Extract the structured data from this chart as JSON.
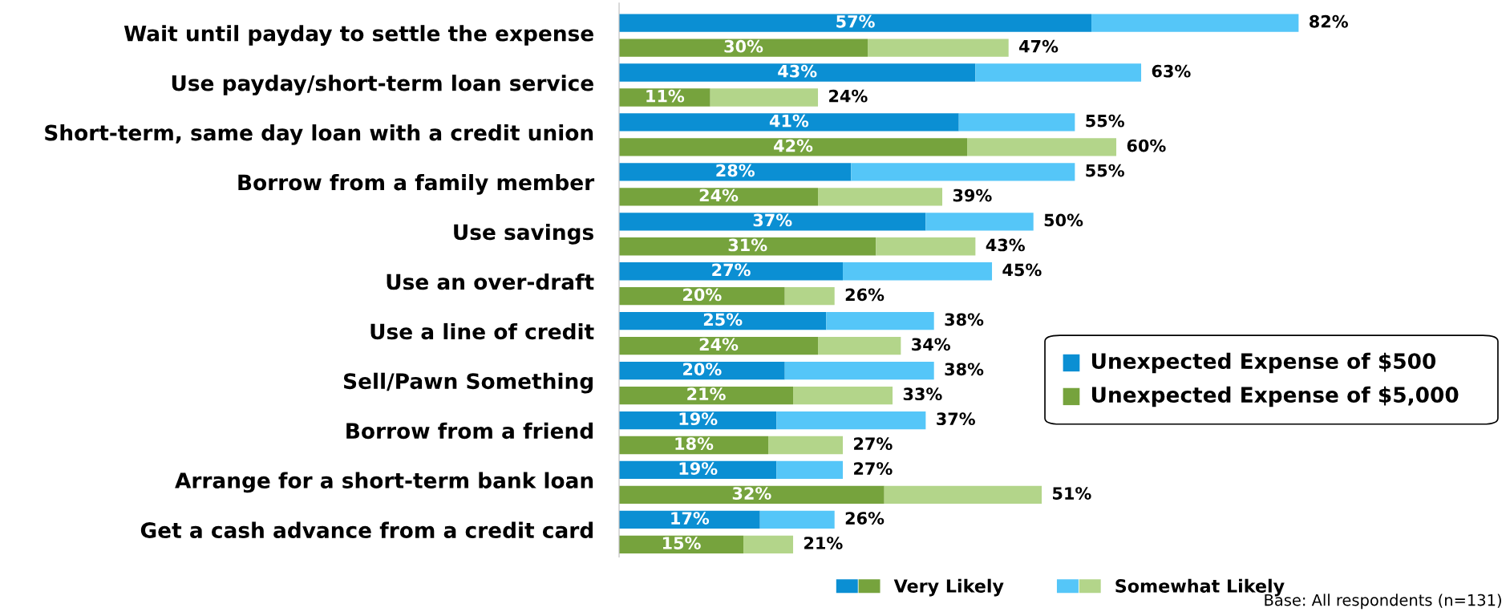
{
  "chart_data": {
    "type": "bar",
    "orientation": "horizontal",
    "stacked": true,
    "categories": [
      "Wait until payday to settle the expense",
      null,
      "Use payday/short-term loan service",
      null,
      "Short-term, same day loan with a credit union",
      null,
      "Borrow from a family member",
      null,
      "Use savings",
      null,
      "Use an over-draft",
      null,
      "Use a line of credit",
      null,
      "Sell/Pawn Something",
      null,
      "Borrow from a friend",
      null,
      "Arrange for a short-term bank loan",
      null,
      "Get a cash advance from a credit card",
      null
    ],
    "series": [
      {
        "name": "Very Likely",
        "colors": [
          "#0b8fd3",
          "#76a33d",
          "#0b8fd3",
          "#76a33d",
          "#0b8fd3",
          "#76a33d",
          "#0b8fd3",
          "#76a33d",
          "#0b8fd3",
          "#76a33d",
          "#0b8fd3",
          "#76a33d",
          "#0b8fd3",
          "#76a33d",
          "#0b8fd3",
          "#76a33d",
          "#0b8fd3",
          "#76a33d",
          "#0b8fd3",
          "#76a33d",
          "#0b8fd3",
          "#76a33d"
        ],
        "values": [
          57,
          30,
          43,
          11,
          41,
          42,
          28,
          24,
          37,
          31,
          27,
          20,
          25,
          24,
          20,
          21,
          19,
          18,
          19,
          32,
          17,
          15
        ],
        "value_labels": [
          "57%",
          "30%",
          "43%",
          "11%",
          "41%",
          "42%",
          "28%",
          "24%",
          "37%",
          "31%",
          "27%",
          "20%",
          "25%",
          "24%",
          "20%",
          "21%",
          "19%",
          "18%",
          "19%",
          "32%",
          "17%",
          "15%"
        ]
      },
      {
        "name": "Somewhat Likely",
        "colors": [
          "#55c6f8",
          "#b3d58a",
          "#55c6f8",
          "#b3d58a",
          "#55c6f8",
          "#b3d58a",
          "#55c6f8",
          "#b3d58a",
          "#55c6f8",
          "#b3d58a",
          "#55c6f8",
          "#b3d58a",
          "#55c6f8",
          "#b3d58a",
          "#55c6f8",
          "#b3d58a",
          "#55c6f8",
          "#b3d58a",
          "#55c6f8",
          "#b3d58a",
          "#55c6f8",
          "#b3d58a"
        ],
        "values": [
          25,
          17,
          20,
          13,
          14,
          18,
          27,
          15,
          13,
          12,
          18,
          6,
          13,
          10,
          18,
          12,
          18,
          9,
          8,
          19,
          9,
          6
        ]
      }
    ],
    "totals": [
      "82%",
      "47%",
      "63%",
      "24%",
      "55%",
      "60%",
      "55%",
      "39%",
      "50%",
      "43%",
      "45%",
      "26%",
      "38%",
      "34%",
      "38%",
      "33%",
      "37%",
      "27%",
      "27%",
      "51%",
      "26%",
      "21%"
    ],
    "tick_labels": "y",
    "legend": "bottom",
    "grid": false,
    "annotations": [
      "Unexpected Expense of $500",
      "Unexpected Expense of $5,000",
      "Base: All respondents (n=131)"
    ]
  }
}
